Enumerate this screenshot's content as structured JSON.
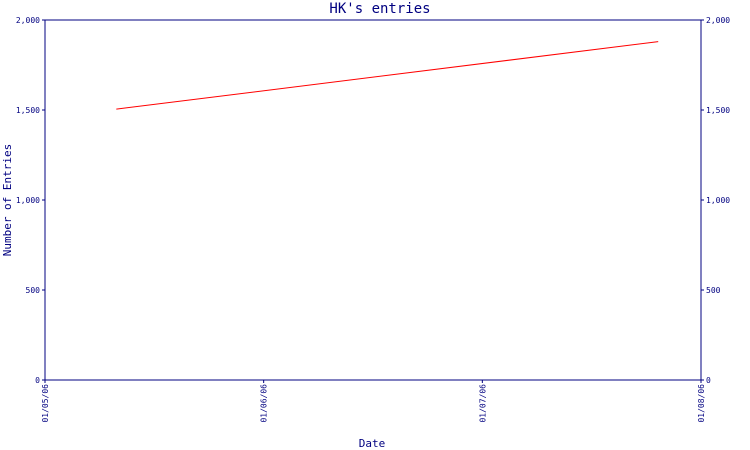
{
  "chart_data": {
    "type": "line",
    "title": "HK's entries",
    "xlabel": "Date",
    "ylabel": "Number of Entries",
    "x_ticks": [
      "01/05/06",
      "01/06/06",
      "01/07/06",
      "01/08/06"
    ],
    "y_ticks": [
      "0",
      "500",
      "1,000",
      "1,500",
      "2,000"
    ],
    "ylim": [
      0,
      2000
    ],
    "xlim": [
      "2006-05-01",
      "2006-08-01"
    ],
    "grid": false,
    "series": [
      {
        "color": "#ff0000",
        "points": [
          {
            "x": "2006-05-11",
            "y": 1505
          },
          {
            "x": "2006-07-26",
            "y": 1880
          }
        ]
      }
    ],
    "colors": {
      "axis": "#000080",
      "text": "#000080",
      "line": "#ff0000"
    }
  }
}
